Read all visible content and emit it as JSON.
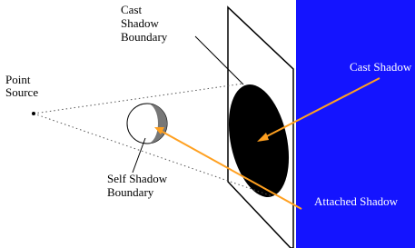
{
  "labels": {
    "cast_shadow_boundary": [
      "Cast",
      "Shadow",
      "Boundary"
    ],
    "point_source": [
      "Point",
      "Source"
    ],
    "self_shadow_boundary": [
      "Self Shadow",
      "Boundary"
    ],
    "cast_shadow": "Cast Shadow",
    "attached_shadow": "Attached Shadow"
  }
}
